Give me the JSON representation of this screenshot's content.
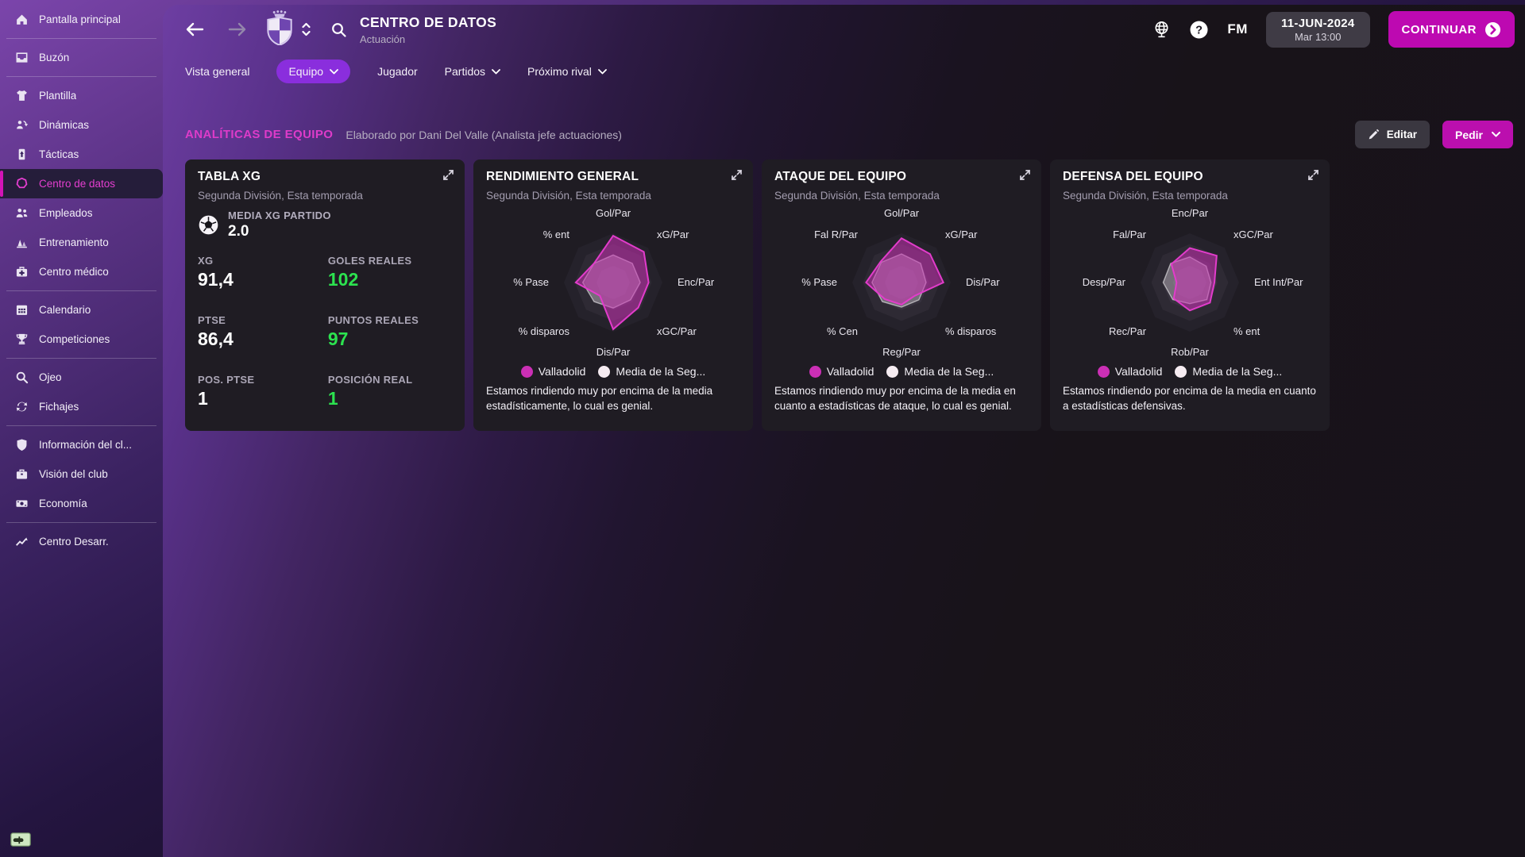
{
  "header": {
    "title": "CENTRO DE DATOS",
    "subtitle": "Actuación"
  },
  "top_right": {
    "fm_label": "FM",
    "date": "11-JUN-2024",
    "time": "Mar 13:00",
    "continue_label": "CONTINUAR"
  },
  "tabs": [
    {
      "label": "Vista general",
      "selected": false,
      "dropdown": false
    },
    {
      "label": "Equipo",
      "selected": true,
      "dropdown": true
    },
    {
      "label": "Jugador",
      "selected": false,
      "dropdown": false
    },
    {
      "label": "Partidos",
      "selected": false,
      "dropdown": true
    },
    {
      "label": "Próximo rival",
      "selected": false,
      "dropdown": true
    }
  ],
  "sidebar": {
    "items": [
      {
        "label": "Pantalla principal",
        "icon": "home",
        "selected": false,
        "divider_after": true
      },
      {
        "label": "Buzón",
        "icon": "inbox",
        "selected": false,
        "divider_after": true
      },
      {
        "label": "Plantilla",
        "icon": "shirt",
        "selected": false,
        "divider_after": false
      },
      {
        "label": "Dinámicas",
        "icon": "dynamics",
        "selected": false,
        "divider_after": false
      },
      {
        "label": "Tácticas",
        "icon": "tactics",
        "selected": false,
        "divider_after": false
      },
      {
        "label": "Centro de datos",
        "icon": "datahub",
        "selected": true,
        "divider_after": false
      },
      {
        "label": "Empleados",
        "icon": "staff",
        "selected": false,
        "divider_after": false
      },
      {
        "label": "Entrenamiento",
        "icon": "training",
        "selected": false,
        "divider_after": false
      },
      {
        "label": "Centro médico",
        "icon": "medical",
        "selected": false,
        "divider_after": true
      },
      {
        "label": "Calendario",
        "icon": "calendar",
        "selected": false,
        "divider_after": false
      },
      {
        "label": "Competiciones",
        "icon": "trophy",
        "selected": false,
        "divider_after": true
      },
      {
        "label": "Ojeo",
        "icon": "scouting",
        "selected": false,
        "divider_after": false
      },
      {
        "label": "Fichajes",
        "icon": "transfers",
        "selected": false,
        "divider_after": true
      },
      {
        "label": "Información del cl...",
        "icon": "clubinfo",
        "selected": false,
        "divider_after": false
      },
      {
        "label": "Visión del club",
        "icon": "vision",
        "selected": false,
        "divider_after": false
      },
      {
        "label": "Economía",
        "icon": "finances",
        "selected": false,
        "divider_after": true
      },
      {
        "label": "Centro Desarr.",
        "icon": "development",
        "selected": false,
        "divider_after": false
      }
    ]
  },
  "section": {
    "title": "ANALÍTICAS DE EQUIPO",
    "byline": "Elaborado por Dani Del Valle (Analista jefe actuaciones)",
    "edit_label": "Editar",
    "request_label": "Pedir"
  },
  "xg_card": {
    "title": "TABLA XG",
    "subtitle": "Segunda División, Esta temporada",
    "avg_label": "MEDIA XG PARTIDO",
    "avg_value": "2.0",
    "stats": [
      {
        "label": "XG",
        "value": "91,4",
        "highlight": false
      },
      {
        "label": "GOLES REALES",
        "value": "102",
        "highlight": true
      },
      {
        "label": "PTSE",
        "value": "86,4",
        "highlight": false
      },
      {
        "label": "PUNTOS REALES",
        "value": "97",
        "highlight": true
      },
      {
        "label": "POS. PTSE",
        "value": "1",
        "highlight": false
      },
      {
        "label": "POSICIÓN REAL",
        "value": "1",
        "highlight": true
      }
    ]
  },
  "chart_data": [
    {
      "type": "radar",
      "title": "RENDIMIENTO GENERAL",
      "subtitle": "Segunda División, Esta temporada",
      "axes": [
        "Gol/Par",
        "xG/Par",
        "Enc/Par",
        "xGC/Par",
        "Dis/Par",
        "% disparos",
        "% Pase",
        "% ent"
      ],
      "range": [
        0,
        1
      ],
      "grid": true,
      "legend_position": "bottom",
      "series": [
        {
          "name": "Valladolid",
          "color": "#cb2fb5",
          "values": [
            0.95,
            0.88,
            0.72,
            0.72,
            0.95,
            0.38,
            0.76,
            0.55
          ]
        },
        {
          "name": "Media de la Seg...",
          "color": "#f6ecf2",
          "values": [
            0.56,
            0.55,
            0.55,
            0.5,
            0.52,
            0.55,
            0.62,
            0.55
          ]
        }
      ],
      "description": "Estamos rindiendo muy por encima de la media estadísticamente, lo cual es genial."
    },
    {
      "type": "radar",
      "title": "ATAQUE DEL EQUIPO",
      "subtitle": "Segunda División, Esta temporada",
      "axes": [
        "Gol/Par",
        "xG/Par",
        "Dis/Par",
        "% disparos",
        "Reg/Par",
        "% Cen",
        "% Pase",
        "Fal R/Par"
      ],
      "range": [
        0,
        1
      ],
      "grid": true,
      "legend_position": "bottom",
      "series": [
        {
          "name": "Valladolid",
          "color": "#cb2fb5",
          "values": [
            0.9,
            0.82,
            0.85,
            0.38,
            0.45,
            0.48,
            0.72,
            0.6
          ]
        },
        {
          "name": "Media de la Seg...",
          "color": "#f6ecf2",
          "values": [
            0.58,
            0.55,
            0.5,
            0.5,
            0.5,
            0.55,
            0.6,
            0.58
          ]
        }
      ],
      "description": "Estamos rindiendo muy por encima de la media en cuanto a estadísticas de ataque, lo cual es genial."
    },
    {
      "type": "radar",
      "title": "DEFENSA DEL EQUIPO",
      "subtitle": "Segunda División, Esta temporada",
      "axes": [
        "Enc/Par",
        "xGC/Par",
        "Ent Int/Par",
        "% ent",
        "Rob/Par",
        "Rec/Par",
        "Desp/Par",
        "Fal/Par"
      ],
      "range": [
        0,
        1
      ],
      "grid": true,
      "legend_position": "bottom",
      "series": [
        {
          "name": "Valladolid",
          "color": "#cb2fb5",
          "values": [
            0.7,
            0.77,
            0.5,
            0.58,
            0.57,
            0.46,
            0.27,
            0.53
          ]
        },
        {
          "name": "Media de la Seg...",
          "color": "#f6ecf2",
          "values": [
            0.52,
            0.47,
            0.43,
            0.49,
            0.43,
            0.49,
            0.54,
            0.55
          ]
        }
      ],
      "description": "Estamos rindiendo por encima de la media en cuanto a estadísticas defensivas."
    }
  ],
  "colors": {
    "accent_magenta": "#bd09b1",
    "selected_tab": "#8a2edd",
    "team_series": "#cb2fb5",
    "avg_series": "#f6ecf2",
    "positive_green": "#2ce24f",
    "sidebar_selected": "#e43ed0"
  }
}
